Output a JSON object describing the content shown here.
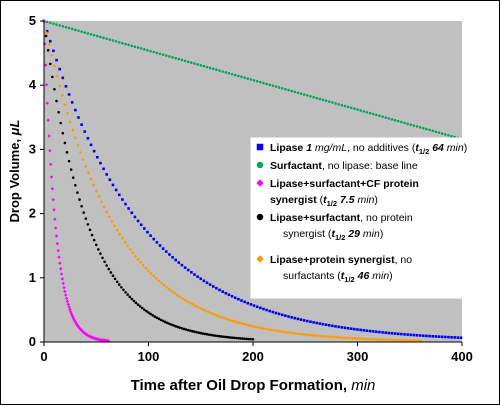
{
  "chart_data": {
    "type": "scatter",
    "xlabel": "Time after Oil Drop Formation, ",
    "xlabel_unit": "min",
    "ylabel": "Drop Volume, ",
    "ylabel_unit": "μL",
    "xlim": [
      0,
      400
    ],
    "ylim": [
      0,
      5
    ],
    "x_ticks": [
      "0",
      "100",
      "200",
      "300",
      "400"
    ],
    "y_ticks": [
      "0",
      "1",
      "2",
      "3",
      "4",
      "5"
    ],
    "grid": false,
    "plot_background": "#c0c0c0",
    "legend_position": "right",
    "series": [
      {
        "key": "lipase",
        "color": "#0000ff",
        "marker": "square",
        "model": "exponential-decay",
        "initial_value": 5.0,
        "half_life_min": 64,
        "x_range": [
          0,
          400
        ],
        "step": 3,
        "legend": {
          "line1": [
            {
              "text": "Lipase ",
              "b": true
            },
            {
              "text": "1",
              "b": true,
              "i": true
            },
            {
              "text": " mg/mL",
              "i": true
            },
            {
              "text": ",  no additives ("
            },
            {
              "text": "t",
              "b": true,
              "i": true
            },
            {
              "text": "1/2",
              "b": true,
              "sub": true
            },
            {
              "text": " 64 ",
              "b": true,
              "i": true
            },
            {
              "text": "min",
              "i": true
            },
            {
              "text": ")"
            }
          ],
          "line2": []
        }
      },
      {
        "key": "surfactant",
        "color": "#00a65a",
        "marker": "circle",
        "model": "linear",
        "initial_value": 5.0,
        "slope_per_min": -0.0046,
        "x_range": [
          0,
          400
        ],
        "step": 3,
        "legend": {
          "line1": [
            {
              "text": "Surfactant",
              "b": true
            },
            {
              "text": ", no lipase: base line"
            }
          ],
          "line2": []
        }
      },
      {
        "key": "cf",
        "color": "#ff00ff",
        "marker": "diamond",
        "model": "exponential-decay",
        "initial_value": 5.0,
        "half_life_min": 7.5,
        "x_range": [
          0,
          62
        ],
        "step": 0.8,
        "legend": {
          "line1": [
            {
              "text": "Lipase+surfactant+CF protein",
              "b": true
            }
          ],
          "line2": [
            {
              "text": "synergist",
              "b": true
            },
            {
              "text": " ("
            },
            {
              "text": "t",
              "b": true,
              "i": true
            },
            {
              "text": "1/2",
              "b": true,
              "sub": true
            },
            {
              "text": " 7.5 ",
              "b": true,
              "i": true
            },
            {
              "text": "min",
              "i": true
            },
            {
              "text": ")"
            }
          ]
        }
      },
      {
        "key": "surf_lipase",
        "color": "#000000",
        "marker": "circle",
        "model": "exponential-decay",
        "initial_value": 5.0,
        "half_life_min": 29,
        "x_range": [
          0,
          200
        ],
        "step": 2,
        "legend": {
          "line1": [
            {
              "text": "Lipase+surfactant",
              "b": true
            },
            {
              "text": ", no protein"
            }
          ],
          "line2": [
            {
              "text": "synergist ("
            },
            {
              "text": "t",
              "b": true,
              "i": true
            },
            {
              "text": "1/2",
              "b": true,
              "sub": true
            },
            {
              "text": " 29 ",
              "b": true,
              "i": true
            },
            {
              "text": "min",
              "i": true
            },
            {
              "text": ")"
            }
          ]
        }
      },
      {
        "key": "protein",
        "color": "#ff9900",
        "marker": "diamond",
        "model": "exponential-decay",
        "initial_value": 5.0,
        "half_life_min": 46,
        "x_range": [
          0,
          362
        ],
        "step": 2.5,
        "legend": {
          "line1": [
            {
              "text": "Lipase+protein synergist",
              "b": true
            },
            {
              "text": ", no"
            }
          ],
          "line2": [
            {
              "text": "surfactants ("
            },
            {
              "text": "t",
              "b": true,
              "i": true
            },
            {
              "text": "1/2",
              "b": true,
              "sub": true
            },
            {
              "text": " 46 ",
              "b": true,
              "i": true
            },
            {
              "text": " min",
              "i": true
            },
            {
              "text": ")"
            }
          ]
        }
      }
    ]
  }
}
